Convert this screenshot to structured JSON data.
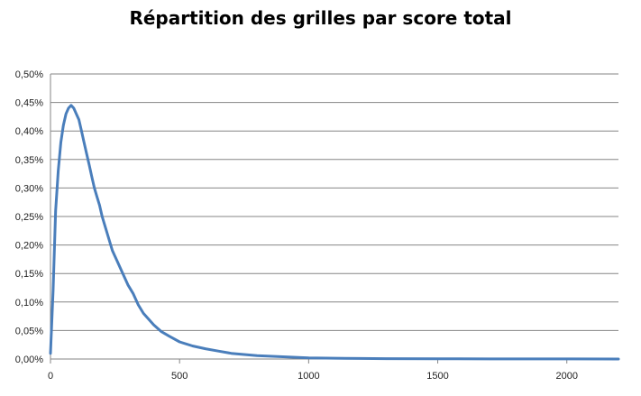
{
  "chart_data": {
    "type": "line",
    "title": "Répartition des grilles par score total",
    "xlabel": "",
    "ylabel": "",
    "xlim": [
      0,
      2200
    ],
    "ylim": [
      0,
      0.005
    ],
    "x_ticks": [
      "0",
      "500",
      "1000",
      "1500",
      "2000"
    ],
    "y_ticks": [
      "0,00%",
      "0,05%",
      "0,10%",
      "0,15%",
      "0,20%",
      "0,25%",
      "0,30%",
      "0,35%",
      "0,40%",
      "0,45%",
      "0,50%"
    ],
    "grid": true,
    "legend": "none",
    "series": [
      {
        "color": "#4a7ebb",
        "x": [
          0,
          10,
          20,
          30,
          40,
          50,
          60,
          70,
          80,
          90,
          100,
          110,
          120,
          130,
          140,
          150,
          160,
          170,
          180,
          190,
          200,
          220,
          240,
          260,
          280,
          300,
          320,
          340,
          360,
          380,
          400,
          430,
          460,
          500,
          550,
          600,
          650,
          700,
          800,
          900,
          1000,
          1100,
          1200,
          1300,
          1500,
          1700,
          2000,
          2200
        ],
        "y": [
          0.0001,
          0.0012,
          0.0026,
          0.0033,
          0.0038,
          0.0041,
          0.0043,
          0.0044,
          0.00445,
          0.0044,
          0.0043,
          0.0042,
          0.004,
          0.0038,
          0.0036,
          0.0034,
          0.0032,
          0.003,
          0.00285,
          0.0027,
          0.0025,
          0.0022,
          0.0019,
          0.0017,
          0.0015,
          0.0013,
          0.00115,
          0.00095,
          0.0008,
          0.0007,
          0.0006,
          0.00048,
          0.0004,
          0.0003,
          0.00023,
          0.00018,
          0.00014,
          0.0001,
          6e-05,
          4e-05,
          2e-05,
          1.5e-05,
          1e-05,
          7e-06,
          4e-06,
          2e-06,
          1e-06,
          5e-07
        ]
      }
    ]
  }
}
